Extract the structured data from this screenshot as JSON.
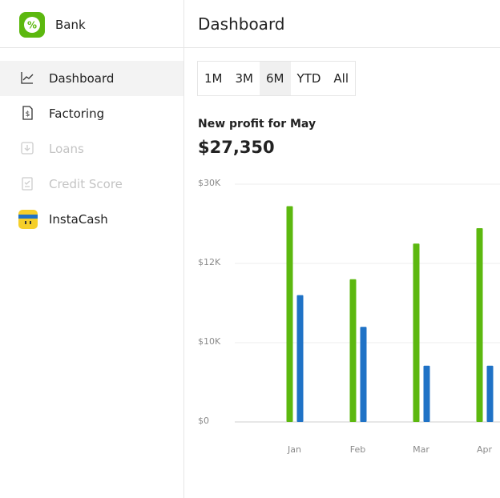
{
  "header": {
    "app_name": "Bank",
    "title": "Dashboard"
  },
  "nav": [
    {
      "label": "Dashboard",
      "active": true,
      "disabled": false
    },
    {
      "label": "Factoring",
      "active": false,
      "disabled": false
    },
    {
      "label": "Loans",
      "active": false,
      "disabled": true
    },
    {
      "label": "Credit Score",
      "active": false,
      "disabled": true
    },
    {
      "label": "InstaCash",
      "active": false,
      "disabled": false
    }
  ],
  "ranges": {
    "options": [
      "1M",
      "3M",
      "6M",
      "YTD",
      "All"
    ],
    "selected": "6M"
  },
  "summary": {
    "label": "New profit for May",
    "value": "$27,350"
  },
  "chart_data": {
    "type": "bar",
    "categories": [
      "Jan",
      "Feb",
      "Mar",
      "Apr"
    ],
    "series": [
      {
        "color": "#5cb80f",
        "values": [
          25000,
          11600,
          16500,
          20000
        ]
      },
      {
        "color": "#1f72c6",
        "values": [
          11200,
          10400,
          7100,
          7100
        ]
      }
    ],
    "ylim": [
      0,
      30000
    ],
    "yticks": [
      {
        "value": 0,
        "label": "$0"
      },
      {
        "value": 10000,
        "label": "$10K"
      },
      {
        "value": 12000,
        "label": "$12K"
      },
      {
        "value": 30000,
        "label": "$30K"
      }
    ],
    "grid": true
  }
}
